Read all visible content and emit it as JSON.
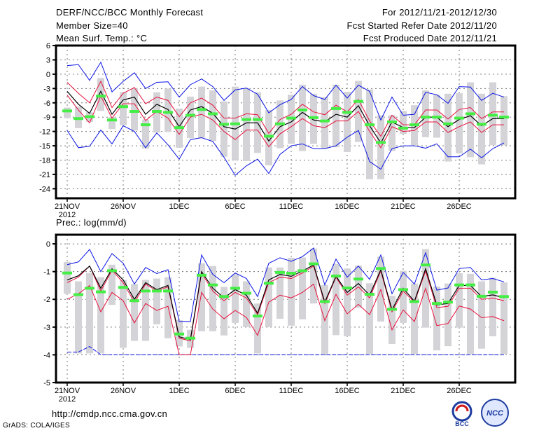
{
  "header": {
    "title": "DERF/NCC/BCC Monthly Forecast",
    "member_size": "Member Size=40",
    "variable": "Mean Surf. Temp.: °C",
    "period": "For 2012/11/21-2012/12/30",
    "started": "Fcst Started Refer Date 2012/11/20",
    "produced": "Fcst Produced Date 2012/11/21"
  },
  "footer": {
    "url": "http://cmdp.ncc.cma.gov.cn",
    "credit": "GrADS: COLA/IGES",
    "logo_bcc": "BCC",
    "logo_ncc": "NCC"
  },
  "colors": {
    "mean": "#000000",
    "spread": "#e8103c",
    "extreme": "#0a14e6",
    "obs": "#44ee44",
    "bar": "#d4d4d8"
  },
  "chart_data": [
    {
      "type": "line",
      "title": "Mean Surf. Temp.: °C",
      "ylim": [
        -26,
        6
      ],
      "yticks": [
        6,
        3,
        0,
        -3,
        -6,
        -9,
        -12,
        -15,
        -18,
        -21,
        -24
      ],
      "xtick_days": [
        0,
        5,
        10,
        15,
        20,
        25,
        30,
        35
      ],
      "xtick_labels": [
        "21NOV",
        "26NOV",
        "1DEC",
        "6DEC",
        "11DEC",
        "16DEC",
        "21DEC",
        "26DEC"
      ],
      "year_label": "2012",
      "grid": true,
      "series": {
        "mean": [
          -3.6,
          -6.3,
          -8.2,
          -3.6,
          -8.4,
          -5.4,
          -4.8,
          -8.4,
          -6.3,
          -7.4,
          -11,
          -7.5,
          -6.8,
          -8.2,
          -11,
          -11.5,
          -10.2,
          -10.2,
          -14,
          -11,
          -10,
          -8,
          -9.6,
          -10,
          -8.4,
          -9,
          -6.6,
          -10.8,
          -14.4,
          -10,
          -11.2,
          -11.2,
          -9,
          -9,
          -11,
          -9.5,
          -8.7,
          -10.8,
          -9.3,
          -9.3
        ],
        "upper": [
          -1.7,
          -4,
          -6,
          -1.5,
          -7,
          -4,
          -2.8,
          -6.2,
          -4.8,
          -5.5,
          -8.9,
          -6,
          -5,
          -6.5,
          -9.2,
          -9.2,
          -8.3,
          -8.5,
          -12.4,
          -9.5,
          -8.4,
          -6.3,
          -7.9,
          -8.5,
          -6.5,
          -7.9,
          -5.3,
          -9.8,
          -13,
          -8.6,
          -10.6,
          -10.6,
          -7.5,
          -7.5,
          -9.4,
          -7.4,
          -7,
          -9.3,
          -7.9,
          -7.9
        ],
        "lower": [
          -4.4,
          -7.5,
          -10.2,
          -4.6,
          -9.2,
          -6.2,
          -6.2,
          -9.7,
          -7.8,
          -9.2,
          -12.6,
          -9,
          -8.4,
          -9.6,
          -12,
          -13.7,
          -11.7,
          -11.7,
          -15.2,
          -12.5,
          -11,
          -9.3,
          -10.8,
          -11.2,
          -9.8,
          -9.8,
          -7.8,
          -12,
          -15.4,
          -11,
          -12,
          -11.8,
          -10,
          -10,
          -12.2,
          -11,
          -10,
          -12.2,
          -10.6,
          -10.6
        ],
        "max": [
          1.8,
          2,
          -1.3,
          2.5,
          -3.7,
          -1.5,
          0.3,
          -3,
          -1.7,
          -1.6,
          -4.8,
          -2.2,
          -1,
          -2.6,
          -5.5,
          -3.3,
          -2.9,
          -4.2,
          -8.1,
          -6.4,
          -5.3,
          -2.6,
          -4.5,
          -5.3,
          -2.3,
          -5,
          -2.3,
          -3.6,
          -9.6,
          -4.8,
          -8.6,
          -8.4,
          -3.8,
          -4.3,
          -6.1,
          -2.6,
          -2.7,
          -5.5,
          -4,
          -4.8
        ],
        "min": [
          -11.8,
          -15.4,
          -15.1,
          -11.7,
          -14.6,
          -10.8,
          -12,
          -15.4,
          -12.3,
          -14.8,
          -17.8,
          -13.7,
          -13.3,
          -14.1,
          -17.4,
          -21.2,
          -19.2,
          -17.8,
          -20.8,
          -16.8,
          -15,
          -14.6,
          -15.6,
          -15.6,
          -15,
          -13.2,
          -11.8,
          -18.3,
          -19.9,
          -15.6,
          -15,
          -15,
          -15.5,
          -14.6,
          -17.3,
          -17.3,
          -15.7,
          -17.5,
          -15.6,
          -14.4
        ],
        "obs": [
          -7.7,
          -9.3,
          -8.9,
          -4.6,
          -9.6,
          -6.8,
          -7.8,
          -10.6,
          -7.8,
          -8,
          -11.2,
          -8.6,
          -7.4,
          -8.3,
          -10.5,
          -10.4,
          -9.5,
          -9.5,
          -13,
          -10.4,
          -9.2,
          -7.5,
          -9.1,
          -9.8,
          -7.2,
          -8,
          -5.7,
          -10.6,
          -14.3,
          -10,
          -11.3,
          -10.6,
          -9,
          -9,
          -10.4,
          -9.2,
          -8.3,
          -10.5,
          -8.6,
          -9
        ],
        "bar_top": [
          -7,
          -6.8,
          -8,
          -0.8,
          -9,
          -3.8,
          -3,
          -9.5,
          -3.8,
          -3,
          -7.2,
          -4.7,
          -2.6,
          -3.4,
          -5.7,
          -2.6,
          -3,
          -3.8,
          -7.5,
          -5.5,
          -4.3,
          -2.2,
          -4.1,
          -4.8,
          -2.2,
          -3.7,
          -1.4,
          -3.2,
          -8.6,
          -8.6,
          -7.7,
          -6.5,
          -3.4,
          -4.3,
          -4.1,
          -4,
          -1.7,
          -4.1,
          -1.7,
          -4.6
        ],
        "bar_bottom": [
          -9.2,
          -11.3,
          -10,
          -7.7,
          -11.5,
          -10.7,
          -11.8,
          -15.6,
          -12.2,
          -12.1,
          -15.4,
          -13.4,
          -13.3,
          -14,
          -17.3,
          -18,
          -18.2,
          -16.5,
          -19.1,
          -15.5,
          -14.6,
          -16.1,
          -14.6,
          -15.6,
          -15.3,
          -16.3,
          -14.2,
          -22,
          -22,
          -16.1,
          -12.5,
          -14.9,
          -13.2,
          -13.3,
          -18.3,
          -16.6,
          -17.4,
          -18.9,
          -14.9,
          -14.9
        ]
      }
    },
    {
      "type": "line",
      "title": "Prec.: log(mm/d)",
      "ylim": [
        -5,
        0.33
      ],
      "yticks": [
        0,
        -1,
        -2,
        -3,
        -4,
        -5
      ],
      "xtick_days": [
        0,
        5,
        10,
        15,
        20,
        25,
        30,
        35
      ],
      "xtick_labels": [
        "21NOV",
        "26NOV",
        "1DEC",
        "6DEC",
        "11DEC",
        "16DEC",
        "21DEC",
        "26DEC"
      ],
      "year_label": "2012",
      "grid": true,
      "series": {
        "mean": [
          -1.3,
          -1.15,
          -0.8,
          -1.6,
          -0.9,
          -1.3,
          -2,
          -1.4,
          -1.65,
          -1.5,
          -3.35,
          -3.45,
          -1,
          -1.6,
          -1.95,
          -1.65,
          -1.85,
          -2.5,
          -1.3,
          -1.1,
          -1.17,
          -0.98,
          -0.76,
          -2.1,
          -1.17,
          -1.75,
          -1.43,
          -1.85,
          -0.93,
          -2.38,
          -1.6,
          -2.07,
          -0.9,
          -2.2,
          -2.15,
          -1.5,
          -1.5,
          -1.9,
          -1.84,
          -1.94
        ],
        "upper": [
          -1.4,
          -1.2,
          -0.8,
          -1.7,
          -0.95,
          -1.4,
          -2.1,
          -1.45,
          -1.7,
          -1.55,
          -3.4,
          -3.5,
          -1.05,
          -1.7,
          -2.05,
          -1.75,
          -1.95,
          -2.55,
          -1.4,
          -1.2,
          -1.25,
          -1.05,
          -0.8,
          -2.15,
          -1.2,
          -1.85,
          -1.55,
          -1.95,
          -0.98,
          -2.45,
          -1.7,
          -2.1,
          -0.98,
          -2.3,
          -2.25,
          -1.6,
          -1.6,
          -2,
          -1.95,
          -2.05
        ],
        "lower": [
          -2,
          -1.8,
          -1.5,
          -2.45,
          -1.75,
          -2.05,
          -2.85,
          -2.15,
          -2.4,
          -2.25,
          -4,
          -4,
          -1.75,
          -2.35,
          -2.7,
          -2.4,
          -2.65,
          -3.3,
          -2.1,
          -1.85,
          -1.95,
          -1.75,
          -1.45,
          -2.77,
          -1.82,
          -2.52,
          -2.18,
          -2.55,
          -1.65,
          -3.1,
          -2.38,
          -2.8,
          -1.6,
          -2.95,
          -2.87,
          -2.24,
          -2.35,
          -2.66,
          -2.62,
          -2.77
        ],
        "max": [
          -0.75,
          -0.65,
          -0.2,
          -1,
          -0.35,
          -0.7,
          -1.45,
          -0.85,
          -1.07,
          -0.93,
          -2.8,
          -2.8,
          -0.4,
          -1.1,
          -1.4,
          -1.05,
          -1.25,
          -1.9,
          -0.7,
          -0.5,
          -0.63,
          -0.46,
          -0.15,
          -1.48,
          -0.55,
          -1.2,
          -0.8,
          -1.28,
          -0.4,
          -1.8,
          -1.03,
          -1.45,
          -0.32,
          -1.67,
          -1.59,
          -0.89,
          -0.85,
          -1.3,
          -1.25,
          -1.37
        ],
        "min": [
          -3.9,
          -3.9,
          -3.7,
          -4,
          -4,
          -4,
          -4,
          -4,
          -4,
          -4,
          -4,
          -4,
          -4,
          -4,
          -4,
          -4,
          -4,
          -4,
          -4,
          -4,
          -4,
          -4,
          -4,
          -4,
          -4,
          -4,
          -4,
          -4,
          -4,
          -4,
          -4,
          -4,
          -4,
          -4,
          -4,
          -4,
          -4,
          -4,
          -4,
          -4
        ],
        "obs": [
          -1.05,
          -1.83,
          -1.6,
          -1.73,
          -0.97,
          -1.57,
          -2.05,
          -1.7,
          -1.7,
          -1.7,
          -3.25,
          -3.4,
          -1.13,
          -1.48,
          -1.9,
          -1.6,
          -1.78,
          -2.6,
          -1.42,
          -1.03,
          -1.06,
          -0.97,
          -0.72,
          -2.08,
          -1.16,
          -1.59,
          -1.27,
          -1.82,
          -0.89,
          -2.36,
          -1.65,
          -2.08,
          -0.76,
          -2.15,
          -2.1,
          -1.48,
          -1.48,
          -1.89,
          -1.74,
          -1.9
        ],
        "bar_top": [
          -0.65,
          -1.35,
          -1.05,
          -1.2,
          -0.75,
          -1.3,
          -1.45,
          -1.3,
          -1.25,
          -1.2,
          -2.75,
          -3.1,
          -0.7,
          -0.8,
          -1.55,
          -1.1,
          -1.35,
          -2.15,
          -0.85,
          -0.85,
          -0.5,
          -0.49,
          -0.17,
          -1.48,
          -0.72,
          -0.89,
          -0.78,
          -1.42,
          -0.46,
          -1.87,
          -0.97,
          -1.43,
          -0.19,
          -1.54,
          -1.43,
          -1.06,
          -1.08,
          -1.35,
          -1.22,
          -1.39
        ],
        "bar_bottom": [
          -1.8,
          -3.95,
          -3.95,
          -3.95,
          -2.2,
          -3.75,
          -3.5,
          -3.5,
          -2.9,
          -3.4,
          -3.7,
          -3.75,
          -3.15,
          -3.15,
          -3.3,
          -2.85,
          -3,
          -3.95,
          -3,
          -2.7,
          -2.95,
          -2.72,
          -2.15,
          -3.97,
          -3.29,
          -3.33,
          -2.3,
          -3.97,
          -2.8,
          -3.61,
          -2.85,
          -3.97,
          -3.02,
          -3.84,
          -3.69,
          -3.02,
          -3.97,
          -3.78,
          -3.33,
          -3.97
        ]
      }
    }
  ]
}
